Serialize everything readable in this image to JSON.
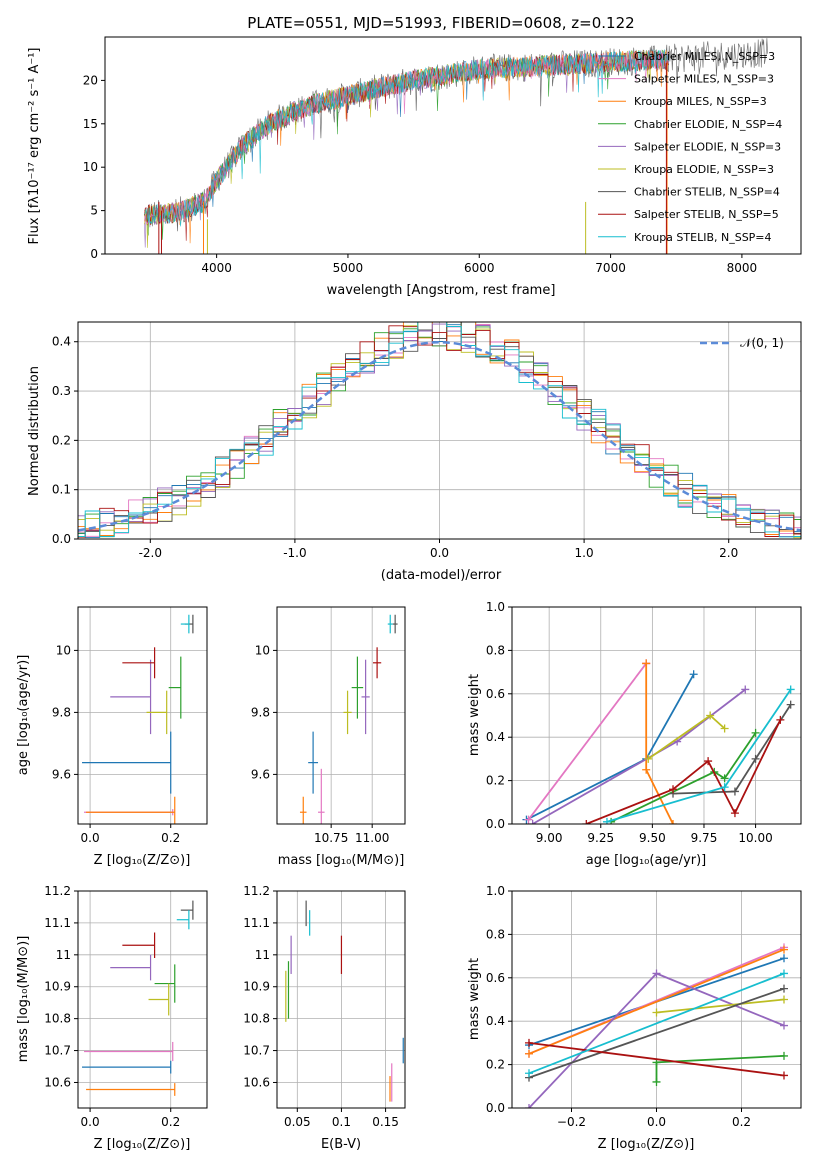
{
  "colors": [
    "#1f77b4",
    "#e377c2",
    "#ff7f0e",
    "#2ca02c",
    "#9467bd",
    "#bcbd22",
    "#555555",
    "#aa1111",
    "#17becf"
  ],
  "chart_data": [
    {
      "type": "line",
      "title": "PLATE=0551, MJD=51993, FIBERID=0608, z=0.122",
      "xlabel": "wavelength [Angstrom, rest frame]",
      "ylabel": "Flux [fλ10⁻¹⁷ erg cm⁻² s⁻¹ A⁻¹]",
      "xlim": [
        3150,
        8450
      ],
      "ylim": [
        0,
        25
      ],
      "xticks": [
        4000,
        5000,
        6000,
        7000,
        8000
      ],
      "yticks": [
        0,
        5,
        10,
        15,
        20
      ],
      "grid": false,
      "legend_position": "top-right",
      "legend": [
        "Chabrier MILES, N_SSP=3",
        "Salpeter MILES, N_SSP=3",
        "Kroupa MILES, N_SSP=3",
        "Chabrier ELODIE, N_SSP=4",
        "Salpeter ELODIE, N_SSP=3",
        "Kroupa ELODIE, N_SSP=3",
        "Chabrier STELIB, N_SSP=4",
        "Salpeter STELIB, N_SSP=5",
        "Kroupa STELIB, N_SSP=4"
      ],
      "continuum_x": [
        3500,
        3700,
        3900,
        4000,
        4200,
        4400,
        4600,
        4800,
        5000,
        5200,
        5500,
        5800,
        6000,
        6300,
        6600,
        6900,
        7100,
        7400,
        7700,
        8000,
        8200
      ],
      "continuum_y": [
        4.5,
        4.8,
        6.0,
        8.5,
        12.5,
        15.0,
        16.5,
        17.5,
        18.2,
        19.0,
        20.0,
        20.8,
        21.3,
        21.5,
        21.8,
        22.0,
        22.2,
        22.4,
        22.8,
        23.0,
        23.2
      ]
    },
    {
      "type": "bar",
      "xlabel": "(data-model)/error",
      "ylabel": "Normed distribution",
      "xlim": [
        -2.5,
        2.5
      ],
      "ylim": [
        0,
        0.44
      ],
      "xticks": [
        -2,
        -1,
        0,
        1,
        2
      ],
      "yticks": [
        0.0,
        0.1,
        0.2,
        0.3,
        0.4
      ],
      "grid": true,
      "legend_position": "top-right",
      "legend": [
        "𝒩(0, 1)"
      ]
    },
    {
      "type": "scatter",
      "xlabel": "Z [log₁₀(Z/Z⊙)]",
      "ylabel": "age  [log₁₀(age/yr)]",
      "xlim": [
        -0.03,
        0.29
      ],
      "ylim": [
        9.44,
        10.14
      ],
      "xticks": [
        0.0,
        0.2
      ],
      "yticks": [
        9.6,
        9.8,
        10.0
      ],
      "grid": true,
      "points": [
        {
          "x": 0.2,
          "y": 9.638,
          "xerr": 0.22,
          "yerr": 0.1
        },
        {
          "x": 0.205,
          "y": 9.478,
          "xerr": 0.22,
          "yerr": 0.0
        },
        {
          "x": 0.21,
          "y": 9.478,
          "xerr": 0.22,
          "yerr": 0.05
        },
        {
          "x": 0.225,
          "y": 9.88,
          "xerr": 0.03,
          "yerr": 0.1
        },
        {
          "x": 0.15,
          "y": 9.85,
          "xerr": 0.1,
          "yerr": 0.12
        },
        {
          "x": 0.19,
          "y": 9.8,
          "xerr": 0.05,
          "yerr": 0.07
        },
        {
          "x": 0.255,
          "y": 10.085,
          "xerr": 0.02,
          "yerr": 0.03
        },
        {
          "x": 0.16,
          "y": 9.96,
          "xerr": 0.08,
          "yerr": 0.05
        },
        {
          "x": 0.245,
          "y": 10.085,
          "xerr": 0.02,
          "yerr": 0.03
        }
      ]
    },
    {
      "type": "scatter",
      "xlabel": "mass [log₁₀(M/M⊙)]",
      "xlim": [
        10.42,
        11.2
      ],
      "ylim": [
        9.44,
        10.14
      ],
      "xticks": [
        10.75,
        11.0
      ],
      "xtick_labels": [
        "10.75",
        "11.00"
      ],
      "yticks": [
        9.6,
        9.8,
        10.0
      ],
      "grid": true,
      "points": [
        {
          "x": 10.64,
          "y": 9.638,
          "xerr": 0.06,
          "yerr": 0.1
        },
        {
          "x": 10.69,
          "y": 9.478,
          "xerr": 0.04,
          "yerr": 0.14
        },
        {
          "x": 10.58,
          "y": 9.478,
          "xerr": 0.04,
          "yerr": 0.05
        },
        {
          "x": 10.91,
          "y": 9.88,
          "xerr": 0.07,
          "yerr": 0.1
        },
        {
          "x": 10.96,
          "y": 9.85,
          "xerr": 0.05,
          "yerr": 0.12
        },
        {
          "x": 10.85,
          "y": 9.8,
          "xerr": 0.05,
          "yerr": 0.07
        },
        {
          "x": 11.14,
          "y": 10.085,
          "xerr": 0.03,
          "yerr": 0.03
        },
        {
          "x": 11.03,
          "y": 9.96,
          "xerr": 0.05,
          "yerr": 0.05
        },
        {
          "x": 11.11,
          "y": 10.085,
          "xerr": 0.03,
          "yerr": 0.03
        }
      ]
    },
    {
      "type": "line",
      "xlabel": "age  [log₁₀(age/yr)]",
      "ylabel": "mass weight",
      "xlim": [
        8.82,
        10.22
      ],
      "ylim": [
        0,
        1
      ],
      "xticks": [
        9.0,
        9.25,
        9.5,
        9.75,
        10.0
      ],
      "xtick_labels": [
        "9.00",
        "9.25",
        "9.50",
        "9.75",
        "10.00"
      ],
      "yticks": [
        0.0,
        0.2,
        0.4,
        0.6,
        0.8,
        1.0
      ],
      "grid": true,
      "series": [
        {
          "x": [
            8.89,
            9.47,
            9.7
          ],
          "y": [
            0.02,
            0.3,
            0.69
          ]
        },
        {
          "x": [
            8.9,
            9.47,
            9.47
          ],
          "y": [
            0.02,
            0.74,
            0.74
          ]
        },
        {
          "x": [
            9.47,
            9.47,
            9.6
          ],
          "y": [
            0.74,
            0.25,
            0.0
          ]
        },
        {
          "x": [
            9.3,
            9.8,
            9.85,
            10.0
          ],
          "y": [
            0.01,
            0.24,
            0.21,
            0.42
          ]
        },
        {
          "x": [
            8.92,
            9.62,
            9.95
          ],
          "y": [
            0.0,
            0.38,
            0.62
          ]
        },
        {
          "x": [
            9.48,
            9.78,
            9.85
          ],
          "y": [
            0.3,
            0.5,
            0.44
          ]
        },
        {
          "x": [
            9.6,
            9.9,
            10.0,
            10.17
          ],
          "y": [
            0.14,
            0.15,
            0.3,
            0.55
          ]
        },
        {
          "x": [
            9.18,
            9.6,
            9.77,
            9.9,
            10.12
          ],
          "y": [
            0.0,
            0.16,
            0.29,
            0.05,
            0.48
          ]
        },
        {
          "x": [
            9.28,
            9.85,
            10.17
          ],
          "y": [
            0.01,
            0.17,
            0.62
          ]
        }
      ]
    },
    {
      "type": "scatter",
      "xlabel": "Z [log₁₀(Z/Z⊙)]",
      "ylabel": "mass [log₁₀(M/M⊙)]",
      "xlim": [
        -0.03,
        0.29
      ],
      "ylim": [
        10.52,
        11.2
      ],
      "xticks": [
        0.0,
        0.2
      ],
      "yticks": [
        10.6,
        10.7,
        10.8,
        10.9,
        11.0,
        11.1,
        11.2
      ],
      "grid": true,
      "points": [
        {
          "x": 0.2,
          "y": 10.648,
          "xerr": 0.22,
          "yerr": 0.02
        },
        {
          "x": 0.205,
          "y": 10.697,
          "xerr": 0.22,
          "yerr": 0.03
        },
        {
          "x": 0.21,
          "y": 10.578,
          "xerr": 0.22,
          "yerr": 0.02
        },
        {
          "x": 0.21,
          "y": 10.91,
          "xerr": 0.05,
          "yerr": 0.06
        },
        {
          "x": 0.15,
          "y": 10.96,
          "xerr": 0.1,
          "yerr": 0.04
        },
        {
          "x": 0.195,
          "y": 10.86,
          "xerr": 0.05,
          "yerr": 0.05
        },
        {
          "x": 0.255,
          "y": 11.14,
          "xerr": 0.03,
          "yerr": 0.03
        },
        {
          "x": 0.16,
          "y": 11.03,
          "xerr": 0.08,
          "yerr": 0.04
        },
        {
          "x": 0.245,
          "y": 11.11,
          "xerr": 0.03,
          "yerr": 0.03
        }
      ]
    },
    {
      "type": "scatter",
      "xlabel": "E(B-V)",
      "xlim": [
        0.027,
        0.172
      ],
      "ylim": [
        10.52,
        11.2
      ],
      "xticks": [
        0.05,
        0.1,
        0.15
      ],
      "yticks": [
        10.6,
        10.7,
        10.8,
        10.9,
        11.0,
        11.1,
        11.2
      ],
      "grid": true,
      "points": [
        {
          "x": 0.17,
          "y": 10.7,
          "yerr": 0.04
        },
        {
          "x": 0.157,
          "y": 10.6,
          "yerr": 0.06
        },
        {
          "x": 0.155,
          "y": 10.58,
          "yerr": 0.04
        },
        {
          "x": 0.04,
          "y": 10.89,
          "yerr": 0.09
        },
        {
          "x": 0.043,
          "y": 11.0,
          "yerr": 0.06
        },
        {
          "x": 0.037,
          "y": 10.87,
          "yerr": 0.08
        },
        {
          "x": 0.06,
          "y": 11.13,
          "yerr": 0.04
        },
        {
          "x": 0.1,
          "y": 11.0,
          "yerr": 0.06
        },
        {
          "x": 0.064,
          "y": 11.1,
          "yerr": 0.04
        }
      ]
    },
    {
      "type": "line",
      "xlabel": "Z [log₁₀(Z/Z⊙)]",
      "ylabel": "mass weight",
      "xlim": [
        -0.34,
        0.34
      ],
      "ylim": [
        0,
        1
      ],
      "xticks": [
        -0.2,
        0.0,
        0.2
      ],
      "yticks": [
        0.0,
        0.2,
        0.4,
        0.6,
        0.8,
        1.0
      ],
      "grid": true,
      "series": [
        {
          "x": [
            -0.3,
            0.3
          ],
          "y": [
            0.29,
            0.69
          ]
        },
        {
          "x": [
            -0.3,
            0.3
          ],
          "y": [
            0.25,
            0.74
          ]
        },
        {
          "x": [
            -0.3,
            0.3
          ],
          "y": [
            0.25,
            0.73
          ]
        },
        {
          "x": [
            0.0,
            0.0,
            0.3
          ],
          "y": [
            0.12,
            0.21,
            0.24
          ]
        },
        {
          "x": [
            -0.3,
            0.0,
            0.3
          ],
          "y": [
            0.0,
            0.62,
            0.38
          ]
        },
        {
          "x": [
            0.0,
            0.3
          ],
          "y": [
            0.44,
            0.5
          ]
        },
        {
          "x": [
            -0.3,
            0.3
          ],
          "y": [
            0.14,
            0.55
          ]
        },
        {
          "x": [
            -0.3,
            0.3
          ],
          "y": [
            0.3,
            0.15
          ]
        },
        {
          "x": [
            -0.3,
            0.3
          ],
          "y": [
            0.16,
            0.62
          ]
        }
      ]
    }
  ]
}
